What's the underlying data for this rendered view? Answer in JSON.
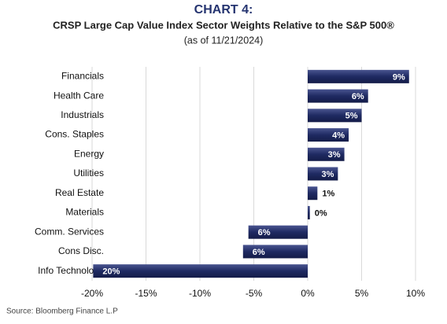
{
  "chart_data": {
    "type": "hbar",
    "title": "CHART 4:",
    "subtitle": "CRSP Large Cap Value Index Sector Weights Relative to the S&P 500®",
    "date_note": "(as of 11/21/2024)",
    "source": "Source: Bloomberg Finance L.P",
    "categories": [
      "Financials",
      "Health Care",
      "Industrials",
      "Cons. Staples",
      "Energy",
      "Utilities",
      "Real Estate",
      "Materials",
      "Comm. Services",
      "Cons Disc.",
      "Info Technology"
    ],
    "values": [
      9.4,
      5.6,
      5.0,
      3.8,
      3.4,
      2.8,
      0.9,
      0.2,
      -5.5,
      -6.0,
      -19.9
    ],
    "value_labels": [
      "9%",
      "6%",
      "5%",
      "4%",
      "3%",
      "3%",
      "1%",
      "0%",
      "6%",
      "6%",
      "20%"
    ],
    "color": "#1f2a62",
    "xlim": [
      -20,
      10
    ],
    "xticks": [
      {
        "value": -20,
        "label": "-20%"
      },
      {
        "value": -15,
        "label": "-15%"
      },
      {
        "value": -10,
        "label": "-10%"
      },
      {
        "value": -5,
        "label": "-5%"
      },
      {
        "value": 0,
        "label": "0%"
      },
      {
        "value": 5,
        "label": "5%"
      },
      {
        "value": 10,
        "label": "10%"
      }
    ],
    "grid": true
  }
}
